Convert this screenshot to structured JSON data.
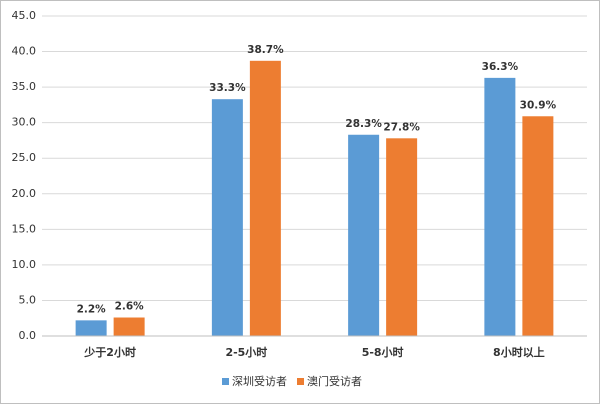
{
  "chart_data": {
    "type": "bar",
    "categories": [
      "少于2小时",
      "2-5小时",
      "5-8小时",
      "8小时以上"
    ],
    "series": [
      {
        "name": "深圳受访者",
        "color": "#5b9bd5",
        "values": [
          2.2,
          33.3,
          28.3,
          36.3
        ],
        "value_labels": [
          "2.2%",
          "33.3%",
          "28.3%",
          "36.3%"
        ]
      },
      {
        "name": "澳门受访者",
        "color": "#ed7d31",
        "values": [
          2.6,
          38.7,
          27.8,
          30.9
        ],
        "value_labels": [
          "2.6%",
          "38.7%",
          "27.8%",
          "30.9%"
        ]
      }
    ],
    "ylim": [
      0,
      45
    ],
    "yticks": [
      {
        "value": 0,
        "label": "0.0"
      },
      {
        "value": 5,
        "label": "5.0"
      },
      {
        "value": 10,
        "label": "10.0"
      },
      {
        "value": 15,
        "label": "15.0"
      },
      {
        "value": 20,
        "label": "20.0"
      },
      {
        "value": 25,
        "label": "25.0"
      },
      {
        "value": 30,
        "label": "30.0"
      },
      {
        "value": 35,
        "label": "35.0"
      },
      {
        "value": 40,
        "label": "40.0"
      },
      {
        "value": 45,
        "label": "45.0"
      }
    ],
    "grid": true,
    "legend": "bottom"
  }
}
